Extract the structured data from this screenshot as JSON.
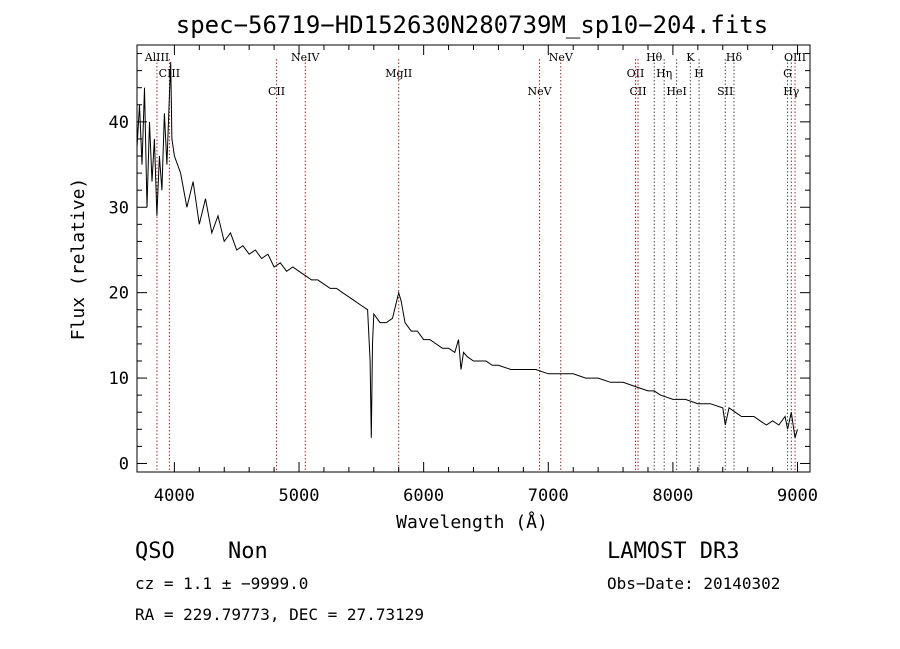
{
  "chart_data": {
    "type": "line",
    "title": "spec−56719−HD152630N280739M_sp10−204.fits",
    "xlabel": "Wavelength (Å)",
    "ylabel": "Flux (relative)",
    "xlim": [
      3700,
      9100
    ],
    "ylim": [
      -1,
      49
    ],
    "x_ticks": [
      4000,
      5000,
      6000,
      7000,
      8000,
      9000
    ],
    "y_ticks": [
      0,
      10,
      20,
      30,
      40
    ],
    "series": [
      {
        "name": "spectrum",
        "x": [
          3700,
          3720,
          3740,
          3760,
          3780,
          3800,
          3820,
          3840,
          3860,
          3880,
          3900,
          3920,
          3940,
          3960,
          3970,
          3980,
          4000,
          4050,
          4100,
          4150,
          4200,
          4250,
          4300,
          4350,
          4400,
          4450,
          4500,
          4550,
          4600,
          4650,
          4700,
          4750,
          4800,
          4850,
          4900,
          4950,
          5000,
          5050,
          5100,
          5150,
          5200,
          5250,
          5300,
          5350,
          5400,
          5450,
          5500,
          5550,
          5570,
          5580,
          5590,
          5600,
          5650,
          5700,
          5750,
          5800,
          5820,
          5850,
          5900,
          5950,
          6000,
          6050,
          6100,
          6150,
          6200,
          6250,
          6280,
          6300,
          6320,
          6350,
          6400,
          6450,
          6500,
          6550,
          6600,
          6700,
          6800,
          6900,
          7000,
          7100,
          7200,
          7300,
          7400,
          7500,
          7600,
          7700,
          7800,
          7850,
          7900,
          8000,
          8100,
          8200,
          8300,
          8400,
          8420,
          8450,
          8500,
          8550,
          8600,
          8650,
          8700,
          8750,
          8800,
          8850,
          8900,
          8920,
          8950,
          8980,
          9000
        ],
        "y": [
          37,
          42,
          35,
          44,
          30,
          40,
          33,
          38,
          29,
          36,
          32,
          41,
          35,
          43,
          47,
          38,
          36,
          34,
          30,
          33,
          28,
          31,
          27,
          29,
          26,
          27,
          25,
          25.5,
          24.5,
          25,
          24,
          24.5,
          23,
          23.5,
          22.5,
          23,
          22.5,
          22,
          21.5,
          21.5,
          21,
          20.5,
          20.5,
          20,
          19.5,
          19,
          18.5,
          18,
          12,
          3,
          14,
          17.5,
          16.5,
          16.5,
          17,
          20,
          19,
          16.5,
          15.5,
          15.5,
          14.5,
          14.5,
          14,
          13.5,
          13.5,
          13,
          14.5,
          11,
          13,
          12.5,
          12,
          12,
          12,
          11.5,
          11.5,
          11,
          11,
          11,
          10.5,
          10.5,
          10.5,
          10,
          10,
          9.5,
          9.5,
          9,
          8.5,
          8.5,
          8,
          7.5,
          7.5,
          7,
          7,
          6.5,
          4.5,
          6.5,
          6,
          5.5,
          5.5,
          5.5,
          5,
          4.5,
          5,
          4.5,
          5.5,
          4,
          6,
          3,
          4
        ]
      }
    ],
    "lines_red": [
      {
        "name": "AlIII",
        "wl": 3860
      },
      {
        "name": "CIII",
        "wl": 3960
      },
      {
        "name": "CII",
        "wl": 4820
      },
      {
        "name": "NeIV",
        "wl": 5050
      },
      {
        "name": "MgII",
        "wl": 5800
      },
      {
        "name": "NeV",
        "wl": 6930
      },
      {
        "name": "NeV",
        "wl": 7100
      },
      {
        "name": "OII",
        "wl": 7700
      },
      {
        "name": "CII",
        "wl": 7720
      },
      {
        "name": "OIII",
        "wl": 8980
      }
    ],
    "lines_absorption": [
      {
        "name": "Hθ",
        "wl": 7850
      },
      {
        "name": "Hη",
        "wl": 7930
      },
      {
        "name": "HeI",
        "wl": 8030
      },
      {
        "name": "K",
        "wl": 8140
      },
      {
        "name": "H",
        "wl": 8210
      },
      {
        "name": "SII",
        "wl": 8420
      },
      {
        "name": "Hδ",
        "wl": 8490
      },
      {
        "name": "G",
        "wl": 8920
      },
      {
        "name": "Hγ",
        "wl": 8950
      }
    ]
  },
  "info": {
    "class": "QSO",
    "subclass": "Non",
    "survey": "LAMOST DR3",
    "cz": "cz = 1.1 ± −9999.0",
    "obs_date": "Obs−Date: 20140302",
    "coords": "RA = 229.79773, DEC =  27.73129"
  }
}
